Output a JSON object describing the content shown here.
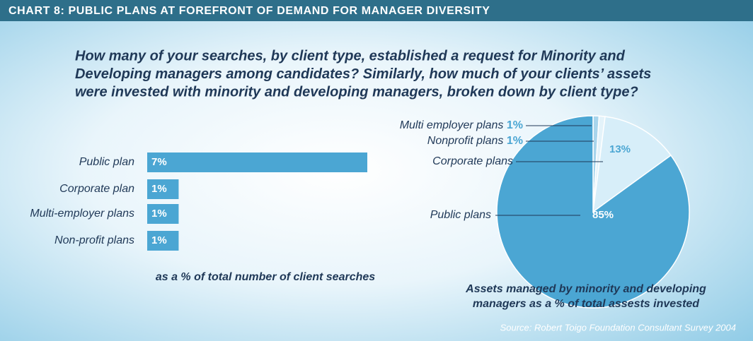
{
  "header": {
    "title": "CHART 8: PUBLIC PLANS AT FOREFRONT OF DEMAND FOR MANAGER DIVERSITY"
  },
  "question": [
    "How many of your searches, by client type, established a request for Minority and",
    "Developing managers among candidates? Similarly, how much of your clients’ assets",
    "were invested with minority and developing managers, broken down by client type?"
  ],
  "source": "Source: Robert Toigo Foundation Consultant Survey 2004",
  "chart_data": [
    {
      "type": "bar",
      "orientation": "horizontal",
      "categories": [
        "Public plan",
        "Corporate plan",
        "Multi-employer plans",
        "Non-profit plans"
      ],
      "values": [
        7,
        1,
        1,
        1
      ],
      "value_labels": [
        "7%",
        "1%",
        "1%",
        "1%"
      ],
      "xlim": [
        0,
        7
      ],
      "color": "#4ba6d3",
      "xlabel": "as a % of total number of client searches"
    },
    {
      "type": "pie",
      "categories": [
        "Multi employer plans",
        "Nonprofit plans",
        "Corporate plans",
        "Public plans"
      ],
      "values": [
        1,
        1,
        13,
        85
      ],
      "value_labels": [
        "1%",
        "1%",
        "13%",
        "85%"
      ],
      "colors": [
        "#a8d5ec",
        "#e4f3fa",
        "#d7eef9",
        "#4ba6d3"
      ],
      "caption": [
        "Assets managed by minority and developing",
        "managers as a % of total assests invested"
      ]
    }
  ]
}
